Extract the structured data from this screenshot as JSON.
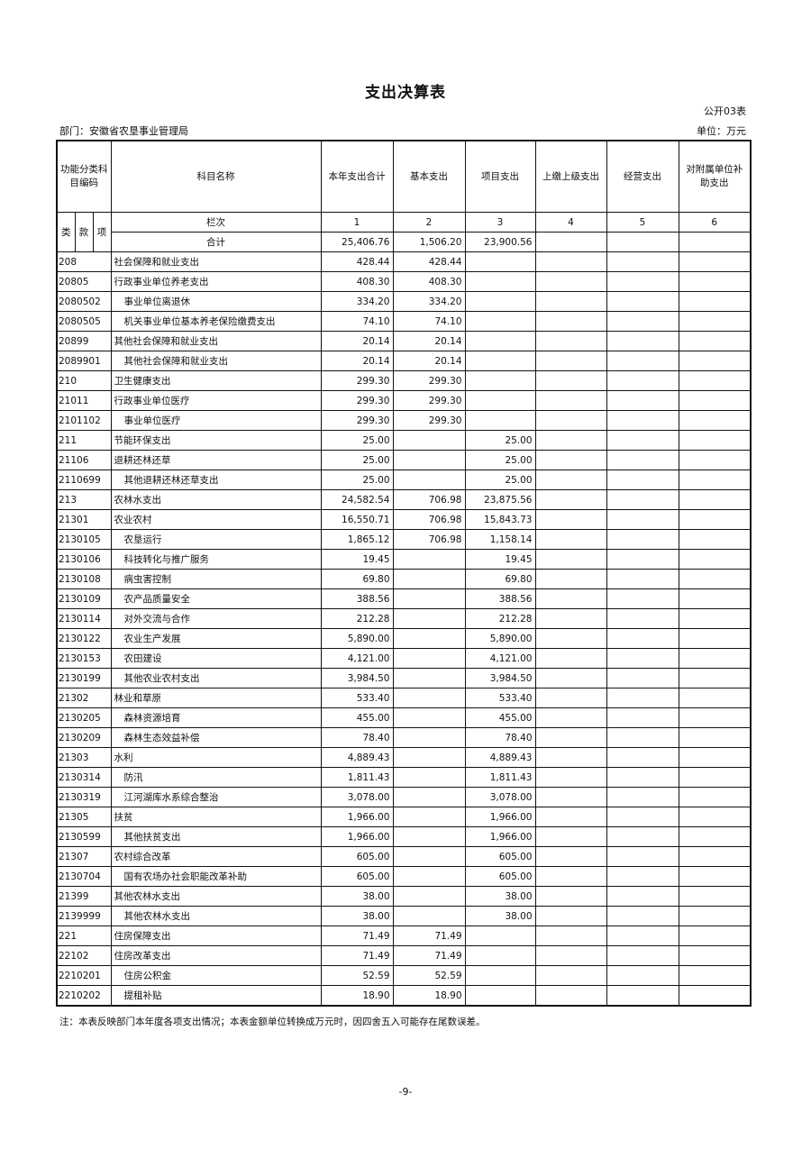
{
  "title": "支出决算表",
  "form_no": "公开03表",
  "department": "部门：安徽省农垦事业管理局",
  "unit": "单位：万元",
  "headers": {
    "code": "功能分类科目编码",
    "name": "科目名称",
    "col1": "本年支出合计",
    "col2": "基本支出",
    "col3": "项目支出",
    "col4": "上缴上级支出",
    "col5": "经营支出",
    "col6": "对附属单位补助支出",
    "lei": "类",
    "kuan": "款",
    "xiang": "项",
    "lanci": "栏次",
    "lanci_nums": [
      "1",
      "2",
      "3",
      "4",
      "5",
      "6"
    ],
    "total_label": "合计"
  },
  "total": [
    "25,406.76",
    "1,506.20",
    "23,900.56",
    "",
    "",
    ""
  ],
  "rows": [
    [
      "208",
      "社会保障和就业支出",
      "428.44",
      "428.44",
      ""
    ],
    [
      "20805",
      "行政事业单位养老支出",
      "408.30",
      "408.30",
      ""
    ],
    [
      "2080502",
      "事业单位离退休",
      "334.20",
      "334.20",
      ""
    ],
    [
      "2080505",
      "机关事业单位基本养老保险缴费支出",
      "74.10",
      "74.10",
      ""
    ],
    [
      "20899",
      "其他社会保障和就业支出",
      "20.14",
      "20.14",
      ""
    ],
    [
      "2089901",
      "其他社会保障和就业支出",
      "20.14",
      "20.14",
      ""
    ],
    [
      "210",
      "卫生健康支出",
      "299.30",
      "299.30",
      ""
    ],
    [
      "21011",
      "行政事业单位医疗",
      "299.30",
      "299.30",
      ""
    ],
    [
      "2101102",
      "事业单位医疗",
      "299.30",
      "299.30",
      ""
    ],
    [
      "211",
      "节能环保支出",
      "25.00",
      "",
      "25.00"
    ],
    [
      "21106",
      "退耕还林还草",
      "25.00",
      "",
      "25.00"
    ],
    [
      "2110699",
      "其他退耕还林还草支出",
      "25.00",
      "",
      "25.00"
    ],
    [
      "213",
      "农林水支出",
      "24,582.54",
      "706.98",
      "23,875.56"
    ],
    [
      "21301",
      "农业农村",
      "16,550.71",
      "706.98",
      "15,843.73"
    ],
    [
      "2130105",
      "农垦运行",
      "1,865.12",
      "706.98",
      "1,158.14"
    ],
    [
      "2130106",
      "科技转化与推广服务",
      "19.45",
      "",
      "19.45"
    ],
    [
      "2130108",
      "病虫害控制",
      "69.80",
      "",
      "69.80"
    ],
    [
      "2130109",
      "农产品质量安全",
      "388.56",
      "",
      "388.56"
    ],
    [
      "2130114",
      "对外交流与合作",
      "212.28",
      "",
      "212.28"
    ],
    [
      "2130122",
      "农业生产发展",
      "5,890.00",
      "",
      "5,890.00"
    ],
    [
      "2130153",
      "农田建设",
      "4,121.00",
      "",
      "4,121.00"
    ],
    [
      "2130199",
      "其他农业农村支出",
      "3,984.50",
      "",
      "3,984.50"
    ],
    [
      "21302",
      "林业和草原",
      "533.40",
      "",
      "533.40"
    ],
    [
      "2130205",
      "森林资源培育",
      "455.00",
      "",
      "455.00"
    ],
    [
      "2130209",
      "森林生态效益补偿",
      "78.40",
      "",
      "78.40"
    ],
    [
      "21303",
      "水利",
      "4,889.43",
      "",
      "4,889.43"
    ],
    [
      "2130314",
      "防汛",
      "1,811.43",
      "",
      "1,811.43"
    ],
    [
      "2130319",
      "江河湖库水系综合整治",
      "3,078.00",
      "",
      "3,078.00"
    ],
    [
      "21305",
      "扶贫",
      "1,966.00",
      "",
      "1,966.00"
    ],
    [
      "2130599",
      "其他扶贫支出",
      "1,966.00",
      "",
      "1,966.00"
    ],
    [
      "21307",
      "农村综合改革",
      "605.00",
      "",
      "605.00"
    ],
    [
      "2130704",
      "国有农场办社会职能改革补助",
      "605.00",
      "",
      "605.00"
    ],
    [
      "21399",
      "其他农林水支出",
      "38.00",
      "",
      "38.00"
    ],
    [
      "2139999",
      "其他农林水支出",
      "38.00",
      "",
      "38.00"
    ],
    [
      "221",
      "住房保障支出",
      "71.49",
      "71.49",
      ""
    ],
    [
      "22102",
      "住房改革支出",
      "71.49",
      "71.49",
      ""
    ],
    [
      "2210201",
      "住房公积金",
      "52.59",
      "52.59",
      ""
    ],
    [
      "2210202",
      "提租补贴",
      "18.90",
      "18.90",
      ""
    ]
  ],
  "note": "注：本表反映部门本年度各项支出情况；本表金额单位转换成万元时，因四舍五入可能存在尾数误差。",
  "page_number": "-9-"
}
